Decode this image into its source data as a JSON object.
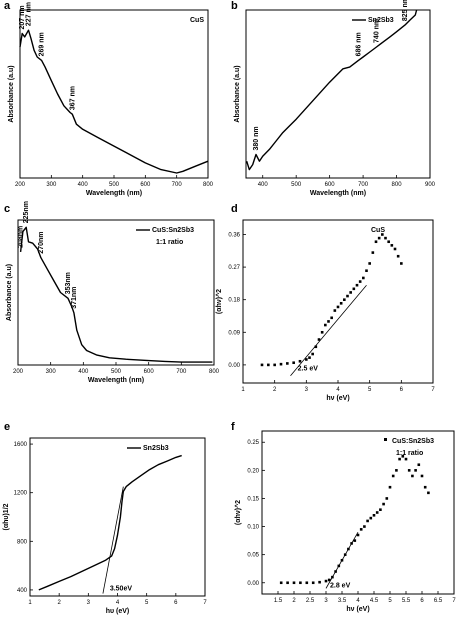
{
  "chart_data": [
    {
      "panel": "a",
      "type": "line",
      "legend": "CuS",
      "xlabel": "Wavelength (nm)",
      "ylabel": "Absorbance (a.u)",
      "xlim": [
        200,
        800
      ],
      "ylim": [
        0,
        1
      ],
      "xticks": [
        200,
        300,
        400,
        500,
        600,
        700,
        800
      ],
      "yticks": [],
      "series": [
        {
          "x": [
            200,
            207,
            215,
            227,
            235,
            245,
            255,
            269,
            280,
            300,
            320,
            340,
            360,
            367,
            380,
            400,
            450,
            500,
            550,
            600,
            650,
            700,
            720,
            760,
            800
          ],
          "y": [
            0.78,
            0.86,
            0.84,
            0.88,
            0.83,
            0.76,
            0.72,
            0.7,
            0.66,
            0.58,
            0.5,
            0.43,
            0.39,
            0.38,
            0.32,
            0.29,
            0.24,
            0.19,
            0.14,
            0.09,
            0.05,
            0.03,
            0.04,
            0.07,
            0.1
          ]
        }
      ],
      "annotations": [
        {
          "text": "207 nm",
          "x": 207,
          "y": 0.86
        },
        {
          "text": "227 nm",
          "x": 227,
          "y": 0.88
        },
        {
          "text": "269 nm",
          "x": 269,
          "y": 0.7
        },
        {
          "text": "367 nm",
          "x": 367,
          "y": 0.38
        }
      ]
    },
    {
      "panel": "b",
      "type": "line",
      "legend": "Sn2Sb3",
      "xlabel": "Wavelength (nm)",
      "ylabel": "Absorbance (a.u)",
      "xlim": [
        350,
        900
      ],
      "ylim": [
        0,
        1
      ],
      "xticks": [
        400,
        500,
        600,
        700,
        800,
        900
      ],
      "yticks": [],
      "series": [
        {
          "x": [
            352,
            360,
            370,
            380,
            390,
            400,
            420,
            440,
            460,
            500,
            550,
            600,
            640,
            660,
            686,
            700,
            720,
            740,
            760,
            780,
            800,
            825,
            840,
            856,
            860
          ],
          "y": [
            0.1,
            0.05,
            0.08,
            0.14,
            0.1,
            0.13,
            0.17,
            0.22,
            0.27,
            0.35,
            0.46,
            0.57,
            0.65,
            0.66,
            0.7,
            0.72,
            0.75,
            0.78,
            0.81,
            0.84,
            0.87,
            0.91,
            0.94,
            0.97,
            1.0
          ]
        }
      ],
      "annotations": [
        {
          "text": "380 nm",
          "x": 380,
          "y": 0.14
        },
        {
          "text": "686 nm",
          "x": 686,
          "y": 0.7
        },
        {
          "text": "740 nm",
          "x": 740,
          "y": 0.78
        },
        {
          "text": "825 nm",
          "x": 825,
          "y": 0.91
        }
      ]
    },
    {
      "panel": "c",
      "type": "line",
      "legend": "CuS:Sn2Sb3",
      "legend_sub": "1:1 ratio",
      "xlabel": "Wavelength (nm)",
      "ylabel": "Absorbance (a.u)",
      "xlim": [
        200,
        800
      ],
      "ylim": [
        0,
        1
      ],
      "xticks": [
        200,
        300,
        400,
        500,
        600,
        700,
        800
      ],
      "yticks": [],
      "series": [
        {
          "x": [
            208,
            215,
            225,
            232,
            245,
            260,
            270,
            290,
            310,
            330,
            353,
            365,
            371,
            380,
            395,
            410,
            440,
            480,
            530,
            600,
            650,
            700,
            750,
            795
          ],
          "y": [
            0.78,
            0.92,
            0.95,
            0.85,
            0.84,
            0.8,
            0.74,
            0.66,
            0.58,
            0.5,
            0.46,
            0.4,
            0.36,
            0.24,
            0.14,
            0.1,
            0.07,
            0.05,
            0.04,
            0.03,
            0.025,
            0.02,
            0.02,
            0.02
          ]
        }
      ],
      "annotations": [
        {
          "text": "208nm",
          "x": 208,
          "y": 0.78
        },
        {
          "text": "225nm",
          "x": 225,
          "y": 0.95
        },
        {
          "text": "270nm",
          "x": 270,
          "y": 0.74
        },
        {
          "text": "353nm",
          "x": 353,
          "y": 0.46
        },
        {
          "text": "371nm",
          "x": 371,
          "y": 0.36
        }
      ]
    },
    {
      "panel": "d",
      "type": "scatter",
      "legend": "CuS",
      "xlabel": "hν (eV)",
      "ylabel": "(αhν)^2",
      "xlim": [
        1,
        7
      ],
      "ylim": [
        -0.05,
        0.4
      ],
      "xticks": [
        1,
        2,
        3,
        4,
        5,
        6,
        7
      ],
      "yticks": [
        0.0,
        0.09,
        0.18,
        0.27,
        0.36
      ],
      "series": [
        {
          "x": [
            1.6,
            1.8,
            2.0,
            2.2,
            2.4,
            2.6,
            2.8,
            3.0,
            3.1,
            3.2,
            3.3,
            3.4,
            3.5,
            3.6,
            3.7,
            3.8,
            3.9,
            4.0,
            4.1,
            4.2,
            4.3,
            4.4,
            4.5,
            4.6,
            4.7,
            4.8,
            4.9,
            5.0,
            5.1,
            5.2,
            5.3,
            5.4,
            5.5,
            5.6,
            5.7,
            5.8,
            5.9,
            6.0
          ],
          "y": [
            0.0,
            0.0,
            0.0,
            0.002,
            0.004,
            0.006,
            0.01,
            0.015,
            0.02,
            0.03,
            0.05,
            0.07,
            0.09,
            0.11,
            0.12,
            0.13,
            0.15,
            0.16,
            0.17,
            0.18,
            0.19,
            0.2,
            0.21,
            0.22,
            0.23,
            0.24,
            0.26,
            0.28,
            0.31,
            0.34,
            0.35,
            0.36,
            0.35,
            0.34,
            0.33,
            0.32,
            0.3,
            0.28
          ]
        }
      ],
      "fit_line": {
        "x": [
          2.5,
          4.9
        ],
        "y": [
          -0.03,
          0.22
        ]
      },
      "annotations": [
        {
          "text": "2.5 eV",
          "x": 2.6,
          "y": -0.015
        }
      ]
    },
    {
      "panel": "e",
      "type": "line",
      "legend": "Sn2Sb3",
      "xlabel": "hυ (eV)",
      "ylabel": "(αhυ)1/2",
      "xlim": [
        1,
        7
      ],
      "ylim": [
        350,
        1650
      ],
      "xticks": [
        1,
        2,
        3,
        4,
        5,
        6,
        7
      ],
      "yticks": [
        400,
        800,
        1200,
        1600
      ],
      "series": [
        {
          "x": [
            1.3,
            1.6,
            2.0,
            2.4,
            2.8,
            3.2,
            3.6,
            3.8,
            3.9,
            4.0,
            4.1,
            4.15,
            4.2,
            4.3,
            4.5,
            4.8,
            5.1,
            5.4,
            5.7,
            6.0,
            6.2
          ],
          "y": [
            400,
            430,
            470,
            510,
            555,
            600,
            645,
            680,
            740,
            850,
            1000,
            1120,
            1210,
            1250,
            1290,
            1340,
            1390,
            1430,
            1460,
            1490,
            1505
          ]
        }
      ],
      "fit_line": {
        "x": [
          3.5,
          4.2
        ],
        "y": [
          370,
          1250
        ]
      },
      "annotations": [
        {
          "text": "3.50eV",
          "x": 3.6,
          "y": 395
        }
      ]
    },
    {
      "panel": "f",
      "type": "scatter",
      "legend": "CuS:Sn2Sb3",
      "legend_sub": "1:1 ratio",
      "xlabel": "hν (eV)",
      "ylabel": "(αhν)^2",
      "xlim": [
        1,
        7
      ],
      "ylim": [
        -0.02,
        0.27
      ],
      "xticks": [
        1.5,
        2.0,
        2.5,
        3.0,
        3.5,
        4.0,
        4.5,
        5.0,
        5.5,
        6.0,
        6.5,
        7.0
      ],
      "yticks": [
        0.0,
        0.05,
        0.1,
        0.15,
        0.2,
        0.25
      ],
      "series": [
        {
          "x": [
            1.6,
            1.8,
            2.0,
            2.2,
            2.4,
            2.6,
            2.8,
            3.0,
            3.1,
            3.2,
            3.3,
            3.4,
            3.5,
            3.6,
            3.7,
            3.8,
            3.9,
            4.0,
            4.1,
            4.2,
            4.3,
            4.4,
            4.5,
            4.6,
            4.7,
            4.8,
            4.9,
            5.0,
            5.1,
            5.2,
            5.3,
            5.4,
            5.5,
            5.6,
            5.7,
            5.8,
            5.9,
            6.0,
            6.1,
            6.2
          ],
          "y": [
            0.0,
            0.0,
            0.0,
            0.0,
            0.0,
            0.0,
            0.001,
            0.003,
            0.005,
            0.01,
            0.02,
            0.03,
            0.04,
            0.05,
            0.06,
            0.07,
            0.075,
            0.085,
            0.095,
            0.1,
            0.11,
            0.115,
            0.12,
            0.125,
            0.13,
            0.14,
            0.15,
            0.17,
            0.19,
            0.2,
            0.22,
            0.225,
            0.22,
            0.2,
            0.19,
            0.2,
            0.21,
            0.19,
            0.17,
            0.16
          ]
        }
      ],
      "fit_line": {
        "x": [
          3.0,
          4.0
        ],
        "y": [
          -0.01,
          0.09
        ]
      },
      "annotations": [
        {
          "text": "2.8 eV",
          "x": 3.0,
          "y": -0.008
        }
      ]
    }
  ]
}
